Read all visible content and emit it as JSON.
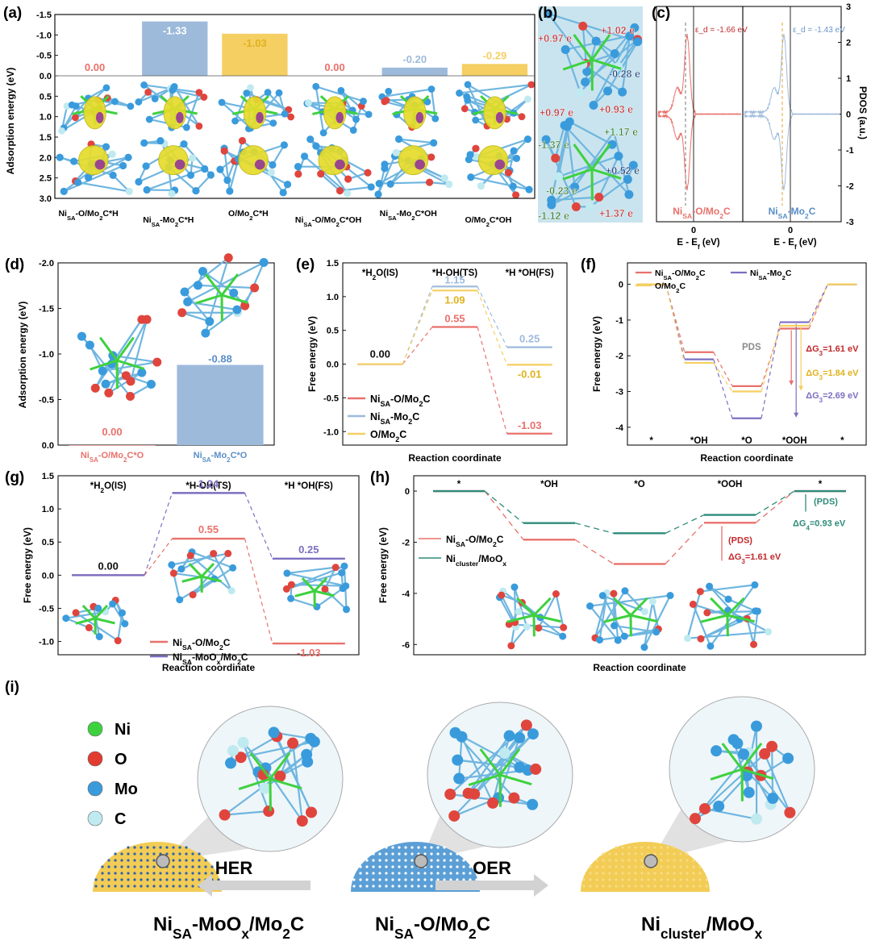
{
  "colors": {
    "red": "#e8716b",
    "blue": "#9dbadb",
    "yellow": "#f5cf62",
    "purple": "#7c6fc0",
    "teal": "#2e8b7a",
    "darkred": "#c0292c",
    "gray": "#cfcfcf"
  },
  "panel_labels": {
    "a": "(a)",
    "b": "(b)",
    "c": "(c)",
    "d": "(d)",
    "e": "(e)",
    "f": "(f)",
    "g": "(g)",
    "h": "(h)",
    "i": "(i)"
  },
  "panel_b": {
    "labels": [
      "+0.97 e",
      "+1.02 e",
      "-0.28 e",
      "+0.97 e",
      "+0.93 e",
      "+1.17 e",
      "-1.37 e",
      "+0.52 e",
      "-0.23 e",
      "-1.12 e",
      "+1.37 e"
    ]
  },
  "chart_data": [
    {
      "panel": "a",
      "type": "bar",
      "categories": [
        "Ni_SA-O/Mo2C*H",
        "Ni_SA-Mo2C*H",
        "O/Mo2C*H",
        "Ni_SA-O/Mo2C*OH",
        "Ni_SA-Mo2C*OH",
        "O/Mo2C*OH"
      ],
      "values": [
        0.0,
        -1.33,
        -1.03,
        0.0,
        -0.2,
        -0.29
      ],
      "value_labels": [
        "0.00",
        "-1.33",
        "-1.03",
        "0.00",
        "-0.20",
        "-0.29"
      ],
      "bar_colors": [
        "#e8716b",
        "#9dbadb",
        "#f5cf62",
        "#e8716b",
        "#9dbadb",
        "#f5cf62"
      ],
      "ylabel": "Adsorption energy (eV)",
      "ylim": [
        -1.5,
        3.0
      ],
      "inverted": true,
      "ticks": [
        "-1.5",
        "-1.0",
        "-0.5",
        "0.0",
        "0.5",
        "1.0",
        "1.5",
        "2.0",
        "2.5",
        "3.0"
      ]
    },
    {
      "panel": "c",
      "type": "line",
      "xlabel": "E - E_f (eV)",
      "ylabel": "PDOS (a.u.)",
      "ylim": [
        -3,
        3
      ],
      "ticks": [
        "3",
        "2",
        "1",
        "0",
        "-1",
        "-2",
        "-3"
      ],
      "xtick": "0",
      "series": [
        {
          "name": "Ni_SA-O/Mo2C",
          "epsilon_d": "ε_d = -1.66 eV",
          "color": "#e8716b"
        },
        {
          "name": "Ni_SA-Mo2C",
          "epsilon_d": "ε_d = -1.43 eV",
          "color": "#9dbadb"
        }
      ]
    },
    {
      "panel": "d",
      "type": "bar",
      "categories": [
        "Ni_SA-O/Mo2C*O",
        "Ni_SA-Mo2C*O"
      ],
      "values": [
        0.0,
        -0.88
      ],
      "value_labels": [
        "0.00",
        "-0.88"
      ],
      "bar_colors": [
        "#e8716b",
        "#9dbadb"
      ],
      "ylabel": "Adsorption energy (eV)",
      "ylim": [
        -2.0,
        0.0
      ],
      "inverted": true,
      "ticks": [
        "-2.0",
        "-1.5",
        "-1.0",
        "-0.5",
        "0.0"
      ]
    },
    {
      "panel": "e",
      "type": "line",
      "states": [
        "*H2O(IS)",
        "*H-OH(TS)",
        "*H *OH(FS)"
      ],
      "xlabel": "Reaction coordinate",
      "ylabel": "Free energy (eV)",
      "ylim": [
        -1.2,
        1.5
      ],
      "ticks": [
        "1.5",
        "1.0",
        "0.5",
        "0.0",
        "-0.5",
        "-1.0"
      ],
      "series": [
        {
          "name": "Ni_SA-O/Mo2C",
          "values": [
            0.0,
            0.55,
            -1.03
          ],
          "labels": [
            "0.00",
            "0.55",
            "-1.03"
          ],
          "color": "#e8716b"
        },
        {
          "name": "Ni_SA-Mo2C",
          "values": [
            0.0,
            1.15,
            0.25
          ],
          "labels": [
            "",
            "1.15",
            "0.25"
          ],
          "color": "#9dbadb"
        },
        {
          "name": "O/Mo2C",
          "values": [
            0.0,
            1.09,
            -0.01
          ],
          "labels": [
            "",
            "1.09",
            "-0.01"
          ],
          "color": "#f5cf62"
        }
      ]
    },
    {
      "panel": "f",
      "type": "line",
      "states": [
        "*",
        "*OH",
        "*O",
        "*OOH",
        "*"
      ],
      "xlabel": "Reaction coordinate",
      "ylabel": "Free energy (eV)",
      "ylim": [
        -4.5,
        0.6
      ],
      "ticks": [
        "0",
        "-1",
        "-2",
        "-3",
        "-4"
      ],
      "pds": "PDS",
      "series": [
        {
          "name": "Ni_SA-O/Mo2C",
          "values": [
            0,
            -1.9,
            -2.85,
            -1.24,
            0
          ],
          "dg": "ΔG3=1.61 eV",
          "color": "#e8716b"
        },
        {
          "name": "Ni_SA-Mo2C",
          "values": [
            0,
            -2.1,
            -3.75,
            -1.06,
            0
          ],
          "dg": "ΔG3=2.69 eV",
          "color": "#7c6fc0"
        },
        {
          "name": "O/Mo2C",
          "values": [
            0,
            -2.2,
            -3.0,
            -1.16,
            0
          ],
          "dg": "ΔG3=1.84 eV",
          "color": "#f5cf62"
        }
      ]
    },
    {
      "panel": "g",
      "type": "line",
      "states": [
        "*H2O(IS)",
        "*H-OH(TS)",
        "*H *OH(FS)"
      ],
      "xlabel": "Reaction coordinate",
      "ylabel": "Free energy (eV)",
      "ylim": [
        -1.2,
        1.5
      ],
      "ticks": [
        "1.5",
        "1.0",
        "0.5",
        "0.0",
        "-0.5",
        "-1.0"
      ],
      "series": [
        {
          "name": "Ni_SA-O/Mo2C",
          "values": [
            0.0,
            0.55,
            -1.03
          ],
          "labels": [
            "0.00",
            "0.55",
            "-1.03"
          ],
          "color": "#e8716b"
        },
        {
          "name": "Ni_SA-MoOx/Mo2C",
          "values": [
            0.0,
            1.24,
            0.25
          ],
          "labels": [
            "",
            "1.24",
            "0.25"
          ],
          "color": "#7c6fc0"
        }
      ]
    },
    {
      "panel": "h",
      "type": "line",
      "states": [
        "*",
        "*OH",
        "*O",
        "*OOH",
        "*"
      ],
      "xlabel": "Reaction coordinate",
      "ylabel": "Free energy (eV)",
      "ylim": [
        -6.4,
        0.6
      ],
      "ticks": [
        "0",
        "-2",
        "-4",
        "-6"
      ],
      "series": [
        {
          "name": "Ni_SA-O/Mo2C",
          "values": [
            0,
            -1.9,
            -2.85,
            -1.24,
            0
          ],
          "pds": "(PDS)",
          "dg": "ΔG3=1.61 eV",
          "color": "#e8716b"
        },
        {
          "name": "Ni_cluster/MoOx",
          "values": [
            0,
            -1.25,
            -1.65,
            -0.93,
            0
          ],
          "pds": "(PDS)",
          "dg": "ΔG4=0.93 eV",
          "color": "#2e8b7a"
        }
      ]
    }
  ],
  "panel_i": {
    "legend": [
      "Ni",
      "O",
      "Mo",
      "C"
    ],
    "legend_colors": [
      "#3ed13e",
      "#e23b32",
      "#3a9bdc",
      "#bfeaf0"
    ],
    "arrows": [
      "HER",
      "OER"
    ],
    "captions": [
      "Ni_SA-MoOx/Mo2C",
      "Ni_SA-O/Mo2C",
      "Ni_cluster/MoOx"
    ]
  }
}
